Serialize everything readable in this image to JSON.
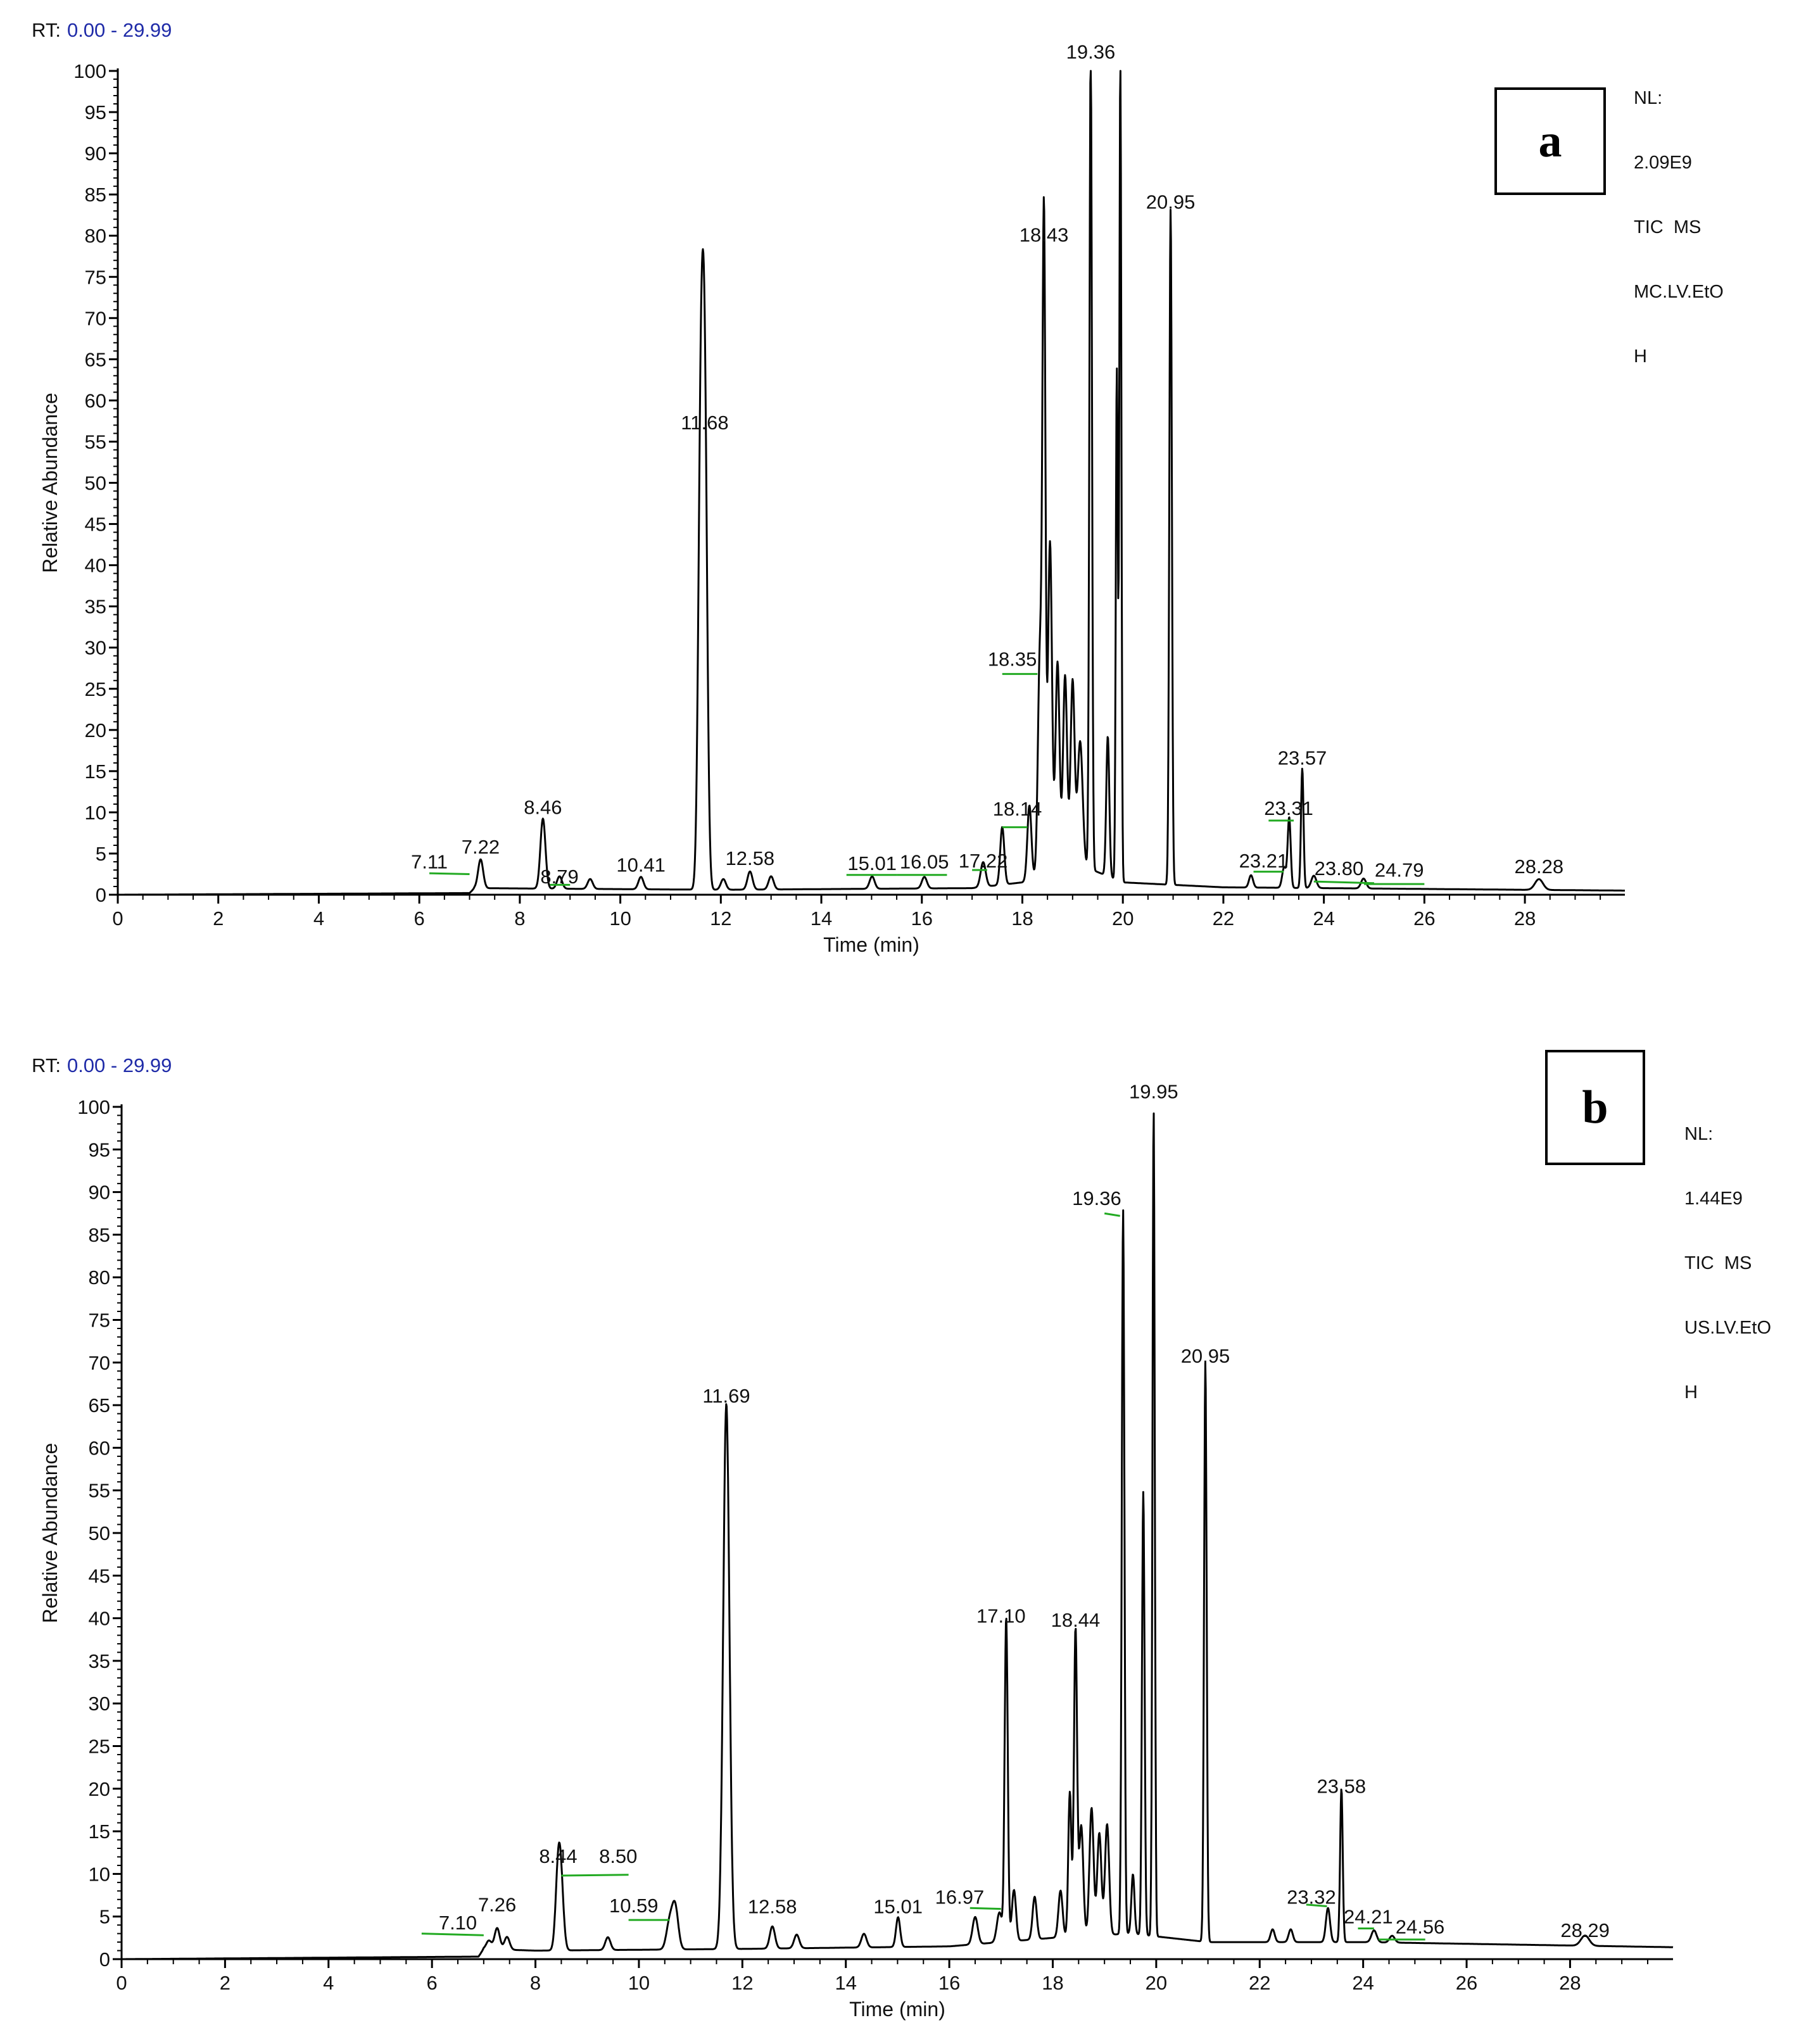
{
  "chart_data": [
    {
      "type": "line",
      "panel_label": "a",
      "rt_label": "RT:",
      "rt_range_text": "0.00 - 29.99",
      "nl_lines": [
        "NL:",
        "2.09E9",
        "TIC  MS",
        "MC.LV.EtO",
        "H"
      ],
      "xlabel": "Time (min)",
      "ylabel": "Relative Abundance",
      "xlim": [
        0,
        29.99
      ],
      "ylim": [
        0,
        100
      ],
      "x_ticks": [
        0,
        2,
        4,
        6,
        8,
        10,
        12,
        14,
        16,
        18,
        20,
        22,
        24,
        26,
        28
      ],
      "y_ticks": [
        0,
        5,
        10,
        15,
        20,
        25,
        30,
        35,
        40,
        45,
        50,
        55,
        60,
        65,
        70,
        75,
        80,
        85,
        90,
        95,
        100
      ],
      "line_color": "#000000",
      "marker_color": "#22aa22",
      "baseline": [
        [
          0,
          0
        ],
        [
          7.0,
          0.2
        ],
        [
          7.1,
          0.8
        ],
        [
          12,
          0.6
        ],
        [
          17,
          0.8
        ],
        [
          18,
          1.5
        ],
        [
          19,
          4
        ],
        [
          20,
          1.5
        ],
        [
          22,
          0.9
        ],
        [
          24,
          0.8
        ],
        [
          28,
          0.6
        ],
        [
          29.99,
          0.5
        ]
      ],
      "peaks": [
        {
          "rt": 7.22,
          "height": 3.5,
          "width": 0.05
        },
        {
          "rt": 8.46,
          "height": 8.5,
          "width": 0.05
        },
        {
          "rt": 8.79,
          "height": 1.5,
          "width": 0.05
        },
        {
          "rt": 9.4,
          "height": 1.2,
          "width": 0.05
        },
        {
          "rt": 10.41,
          "height": 1.5,
          "width": 0.05
        },
        {
          "rt": 11.6,
          "height": 52,
          "width": 0.05
        },
        {
          "rt": 11.68,
          "height": 55,
          "width": 0.05
        },
        {
          "rt": 12.05,
          "height": 1.3,
          "width": 0.05
        },
        {
          "rt": 12.58,
          "height": 2.2,
          "width": 0.05
        },
        {
          "rt": 13.0,
          "height": 1.6,
          "width": 0.05
        },
        {
          "rt": 15.01,
          "height": 1.5,
          "width": 0.05
        },
        {
          "rt": 16.05,
          "height": 1.4,
          "width": 0.05
        },
        {
          "rt": 17.22,
          "height": 3.0,
          "width": 0.05
        },
        {
          "rt": 17.6,
          "height": 7.0,
          "width": 0.04
        },
        {
          "rt": 18.14,
          "height": 9.0,
          "width": 0.04
        },
        {
          "rt": 18.35,
          "height": 27,
          "width": 0.04
        },
        {
          "rt": 18.43,
          "height": 78,
          "width": 0.03
        },
        {
          "rt": 18.55,
          "height": 40,
          "width": 0.04
        },
        {
          "rt": 18.7,
          "height": 25,
          "width": 0.04
        },
        {
          "rt": 18.85,
          "height": 23,
          "width": 0.04
        },
        {
          "rt": 19.0,
          "height": 22,
          "width": 0.04
        },
        {
          "rt": 19.15,
          "height": 15,
          "width": 0.05
        },
        {
          "rt": 19.36,
          "height": 100,
          "width": 0.025
        },
        {
          "rt": 19.7,
          "height": 17,
          "width": 0.03
        },
        {
          "rt": 19.88,
          "height": 62,
          "width": 0.02
        },
        {
          "rt": 19.95,
          "height": 100,
          "width": 0.02
        },
        {
          "rt": 20.95,
          "height": 82,
          "width": 0.025
        },
        {
          "rt": 22.55,
          "height": 1.5,
          "width": 0.04
        },
        {
          "rt": 23.21,
          "height": 2.5,
          "width": 0.04
        },
        {
          "rt": 23.31,
          "height": 8.5,
          "width": 0.03
        },
        {
          "rt": 23.57,
          "height": 14.5,
          "width": 0.025
        },
        {
          "rt": 23.8,
          "height": 1.5,
          "width": 0.05
        },
        {
          "rt": 24.79,
          "height": 1.2,
          "width": 0.05
        },
        {
          "rt": 28.28,
          "height": 1.3,
          "width": 0.08
        }
      ],
      "peak_labels": [
        {
          "text": "7.11",
          "rt": 6.2,
          "y": 3.2,
          "marker": [
            6.2,
            2.6,
            7.0,
            2.5
          ]
        },
        {
          "text": "7.22",
          "rt": 7.22,
          "y": 5.0
        },
        {
          "text": "8.46",
          "rt": 8.46,
          "y": 9.8
        },
        {
          "text": "8.79",
          "rt": 8.79,
          "y": 1.4,
          "marker": [
            8.6,
            1.2,
            9.0,
            1.2
          ]
        },
        {
          "text": "10.41",
          "rt": 10.41,
          "y": 2.8
        },
        {
          "text": "11.68",
          "rt": 11.68,
          "y": 56.5
        },
        {
          "text": "12.58",
          "rt": 12.58,
          "y": 3.6
        },
        {
          "text": "15.01",
          "rt": 15.01,
          "y": 3.0,
          "marker": [
            14.5,
            2.4,
            15.5,
            2.4
          ]
        },
        {
          "text": "16.05",
          "rt": 16.05,
          "y": 3.2,
          "marker": [
            15.5,
            2.4,
            16.5,
            2.4
          ]
        },
        {
          "text": "17.22",
          "rt": 17.22,
          "y": 3.3,
          "marker": [
            17.0,
            3.0,
            17.3,
            3.0
          ]
        },
        {
          "text": "18.14",
          "rt": 17.9,
          "y": 9.6,
          "marker": [
            17.6,
            8.2,
            18.1,
            8.2
          ]
        },
        {
          "text": "18.35",
          "rt": 17.8,
          "y": 27.8,
          "marker": [
            17.6,
            26.8,
            18.3,
            26.8
          ]
        },
        {
          "text": "18.43",
          "rt": 18.43,
          "y": 79.3
        },
        {
          "text": "19.36",
          "rt": 19.36,
          "y": 101.5
        },
        {
          "text": "20.95",
          "rt": 20.95,
          "y": 83.3
        },
        {
          "text": "23.21",
          "rt": 22.8,
          "y": 3.3,
          "marker": [
            22.6,
            2.8,
            23.2,
            2.8
          ]
        },
        {
          "text": "23.31",
          "rt": 23.3,
          "y": 9.7,
          "marker": [
            22.9,
            9.0,
            23.4,
            9.0
          ]
        },
        {
          "text": "23.57",
          "rt": 23.57,
          "y": 15.8
        },
        {
          "text": "23.80",
          "rt": 24.3,
          "y": 2.4,
          "marker": [
            23.8,
            1.6,
            25.0,
            1.4
          ]
        },
        {
          "text": "24.79",
          "rt": 25.5,
          "y": 2.2,
          "marker": [
            24.8,
            1.3,
            26.0,
            1.3
          ]
        },
        {
          "text": "28.28",
          "rt": 28.28,
          "y": 2.6
        }
      ]
    },
    {
      "type": "line",
      "panel_label": "b",
      "rt_label": "RT:",
      "rt_range_text": "0.00 - 29.99",
      "nl_lines": [
        "NL:",
        "1.44E9",
        "TIC  MS",
        "US.LV.EtO",
        "H"
      ],
      "xlabel": "Time (min)",
      "ylabel": "Relative Abundance",
      "xlim": [
        0,
        29.99
      ],
      "ylim": [
        0,
        100
      ],
      "x_ticks": [
        0,
        2,
        4,
        6,
        8,
        10,
        12,
        14,
        16,
        18,
        20,
        22,
        24,
        26,
        28
      ],
      "y_ticks": [
        0,
        5,
        10,
        15,
        20,
        25,
        30,
        35,
        40,
        45,
        50,
        55,
        60,
        65,
        70,
        75,
        80,
        85,
        90,
        95,
        100
      ],
      "line_color": "#000000",
      "marker_color": "#22aa22",
      "baseline": [
        [
          0,
          0
        ],
        [
          6.9,
          0.3
        ],
        [
          7.0,
          1.2
        ],
        [
          8.0,
          1.0
        ],
        [
          12,
          1.2
        ],
        [
          16,
          1.5
        ],
        [
          18,
          2.5
        ],
        [
          19.5,
          3.0
        ],
        [
          21,
          2.0
        ],
        [
          24,
          2.0
        ],
        [
          28,
          1.6
        ],
        [
          29.99,
          1.4
        ]
      ],
      "peaks": [
        {
          "rt": 7.1,
          "height": 1.0,
          "width": 0.05
        },
        {
          "rt": 7.26,
          "height": 2.5,
          "width": 0.05
        },
        {
          "rt": 7.45,
          "height": 1.5,
          "width": 0.05
        },
        {
          "rt": 8.44,
          "height": 9.0,
          "width": 0.05
        },
        {
          "rt": 8.5,
          "height": 6.0,
          "width": 0.05
        },
        {
          "rt": 9.4,
          "height": 1.5,
          "width": 0.05
        },
        {
          "rt": 10.59,
          "height": 3.0,
          "width": 0.06
        },
        {
          "rt": 10.7,
          "height": 5.0,
          "width": 0.06
        },
        {
          "rt": 11.69,
          "height": 64,
          "width": 0.06
        },
        {
          "rt": 12.58,
          "height": 2.6,
          "width": 0.05
        },
        {
          "rt": 13.05,
          "height": 1.6,
          "width": 0.05
        },
        {
          "rt": 14.35,
          "height": 1.6,
          "width": 0.05
        },
        {
          "rt": 15.01,
          "height": 3.5,
          "width": 0.04
        },
        {
          "rt": 16.5,
          "height": 3.2,
          "width": 0.05
        },
        {
          "rt": 16.97,
          "height": 3.5,
          "width": 0.05
        },
        {
          "rt": 17.1,
          "height": 38,
          "width": 0.03
        },
        {
          "rt": 17.25,
          "height": 6.0,
          "width": 0.04
        },
        {
          "rt": 17.65,
          "height": 5.0,
          "width": 0.04
        },
        {
          "rt": 18.15,
          "height": 5.5,
          "width": 0.04
        },
        {
          "rt": 18.33,
          "height": 17,
          "width": 0.03
        },
        {
          "rt": 18.44,
          "height": 36,
          "width": 0.03
        },
        {
          "rt": 18.55,
          "height": 13,
          "width": 0.04
        },
        {
          "rt": 18.75,
          "height": 15,
          "width": 0.04
        },
        {
          "rt": 18.9,
          "height": 12,
          "width": 0.04
        },
        {
          "rt": 19.05,
          "height": 13,
          "width": 0.04
        },
        {
          "rt": 19.36,
          "height": 85,
          "width": 0.025
        },
        {
          "rt": 19.55,
          "height": 7,
          "width": 0.03
        },
        {
          "rt": 19.75,
          "height": 52,
          "width": 0.025
        },
        {
          "rt": 19.95,
          "height": 97,
          "width": 0.022
        },
        {
          "rt": 20.95,
          "height": 68,
          "width": 0.025
        },
        {
          "rt": 22.25,
          "height": 1.5,
          "width": 0.04
        },
        {
          "rt": 22.6,
          "height": 1.5,
          "width": 0.04
        },
        {
          "rt": 23.32,
          "height": 4.0,
          "width": 0.04
        },
        {
          "rt": 23.58,
          "height": 18,
          "width": 0.025
        },
        {
          "rt": 24.21,
          "height": 1.4,
          "width": 0.05
        },
        {
          "rt": 24.56,
          "height": 0.8,
          "width": 0.05
        },
        {
          "rt": 28.29,
          "height": 1.2,
          "width": 0.08
        }
      ],
      "peak_labels": [
        {
          "text": "7.10",
          "rt": 6.5,
          "y": 3.5,
          "marker": [
            5.8,
            3.0,
            7.0,
            2.8
          ]
        },
        {
          "text": "7.26",
          "rt": 7.26,
          "y": 5.6
        },
        {
          "text": "8.44",
          "rt": 8.44,
          "y": 11.3
        },
        {
          "text": "8.50",
          "rt": 9.6,
          "y": 11.3,
          "marker": [
            8.5,
            9.8,
            9.8,
            9.9
          ]
        },
        {
          "text": "10.59",
          "rt": 9.9,
          "y": 5.5,
          "marker": [
            9.8,
            4.6,
            10.59,
            4.6
          ]
        },
        {
          "text": "11.69",
          "rt": 11.69,
          "y": 65.3
        },
        {
          "text": "12.58",
          "rt": 12.58,
          "y": 5.4
        },
        {
          "text": "15.01",
          "rt": 15.01,
          "y": 5.4
        },
        {
          "text": "16.97",
          "rt": 16.2,
          "y": 6.5,
          "marker": [
            16.4,
            6.0,
            17.0,
            5.9
          ]
        },
        {
          "text": "17.10",
          "rt": 17.0,
          "y": 39.5
        },
        {
          "text": "18.44",
          "rt": 18.44,
          "y": 39.0
        },
        {
          "text": "19.36",
          "rt": 18.85,
          "y": 88.5,
          "marker": [
            19.0,
            87.5,
            19.3,
            87.2
          ]
        },
        {
          "text": "19.95",
          "rt": 19.95,
          "y": 101.0
        },
        {
          "text": "20.95",
          "rt": 20.95,
          "y": 70.0
        },
        {
          "text": "23.32",
          "rt": 23.0,
          "y": 6.5,
          "marker": [
            22.9,
            6.4,
            23.3,
            6.2
          ]
        },
        {
          "text": "23.58",
          "rt": 23.58,
          "y": 19.5
        },
        {
          "text": "24.21",
          "rt": 24.1,
          "y": 4.2,
          "marker": [
            23.9,
            3.6,
            24.21,
            3.6
          ]
        },
        {
          "text": "24.56",
          "rt": 25.1,
          "y": 3.0,
          "marker": [
            24.3,
            2.3,
            25.2,
            2.3
          ]
        },
        {
          "text": "28.29",
          "rt": 28.29,
          "y": 2.6
        }
      ]
    }
  ]
}
